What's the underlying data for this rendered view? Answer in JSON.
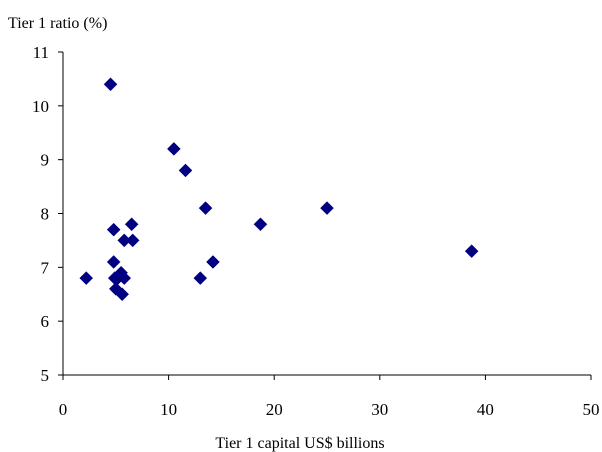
{
  "chart_data": {
    "type": "scatter",
    "title": "",
    "xlabel": "Tier 1 capital US$ billions",
    "ylabel": "Tier 1 ratio (%)",
    "xlim": [
      0,
      50
    ],
    "ylim": [
      5,
      11
    ],
    "xticks": [
      0,
      10,
      20,
      30,
      40,
      50
    ],
    "yticks": [
      5,
      6,
      7,
      8,
      9,
      10,
      11
    ],
    "grid": false,
    "legend": "none",
    "marker": "diamond",
    "marker_color": "#000080",
    "series": [
      {
        "points": [
          {
            "x": 2.2,
            "y": 6.8
          },
          {
            "x": 4.5,
            "y": 10.4
          },
          {
            "x": 4.8,
            "y": 7.7
          },
          {
            "x": 4.8,
            "y": 7.1
          },
          {
            "x": 4.9,
            "y": 6.8
          },
          {
            "x": 5.0,
            "y": 6.6
          },
          {
            "x": 5.2,
            "y": 6.8
          },
          {
            "x": 5.5,
            "y": 6.9
          },
          {
            "x": 5.6,
            "y": 6.5
          },
          {
            "x": 5.8,
            "y": 6.8
          },
          {
            "x": 5.8,
            "y": 7.5
          },
          {
            "x": 6.5,
            "y": 7.8
          },
          {
            "x": 6.6,
            "y": 7.5
          },
          {
            "x": 10.5,
            "y": 9.2
          },
          {
            "x": 11.6,
            "y": 8.8
          },
          {
            "x": 13.0,
            "y": 6.8
          },
          {
            "x": 13.5,
            "y": 8.1
          },
          {
            "x": 14.2,
            "y": 7.1
          },
          {
            "x": 18.7,
            "y": 7.8
          },
          {
            "x": 25.0,
            "y": 8.1
          },
          {
            "x": 38.7,
            "y": 7.3
          }
        ]
      }
    ]
  }
}
